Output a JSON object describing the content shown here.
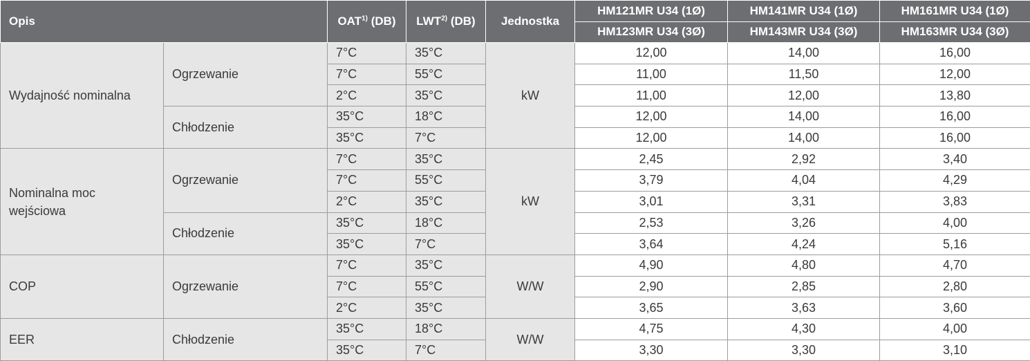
{
  "header": {
    "opis": "Opis",
    "oat": {
      "text": "OAT",
      "sup": "1)",
      "suffix": "(DB)"
    },
    "lwt": {
      "text": "LWT",
      "sup": "2)",
      "suffix": "(DB)"
    },
    "unit": "Jednostka",
    "models": [
      [
        "HM121MR U34 (1Ø)",
        "HM123MR U34 (3Ø)"
      ],
      [
        "HM141MR U34 (1Ø)",
        "HM143MR U34 (3Ø)"
      ],
      [
        "HM161MR U34 (1Ø)",
        "HM163MR U34 (3Ø)"
      ]
    ]
  },
  "groups": [
    {
      "label": "Wydajność nominalna",
      "unit": "kW",
      "modes": [
        {
          "label": "Ogrzewanie",
          "rows": [
            {
              "oat": "7°C",
              "lwt": "35°C",
              "values": [
                "12,00",
                "14,00",
                "16,00"
              ]
            },
            {
              "oat": "7°C",
              "lwt": "55°C",
              "values": [
                "11,00",
                "11,50",
                "12,00"
              ]
            },
            {
              "oat": "2°C",
              "lwt": "35°C",
              "values": [
                "11,00",
                "12,00",
                "13,80"
              ]
            }
          ]
        },
        {
          "label": "Chłodzenie",
          "rows": [
            {
              "oat": "35°C",
              "lwt": "18°C",
              "values": [
                "12,00",
                "14,00",
                "16,00"
              ]
            },
            {
              "oat": "35°C",
              "lwt": "7°C",
              "values": [
                "12,00",
                "14,00",
                "16,00"
              ]
            }
          ]
        }
      ]
    },
    {
      "label": "Nominalna moc\nwejściowa",
      "unit": "kW",
      "modes": [
        {
          "label": "Ogrzewanie",
          "rows": [
            {
              "oat": "7°C",
              "lwt": "35°C",
              "values": [
                "2,45",
                "2,92",
                "3,40"
              ]
            },
            {
              "oat": "7°C",
              "lwt": "55°C",
              "values": [
                "3,79",
                "4,04",
                "4,29"
              ]
            },
            {
              "oat": "2°C",
              "lwt": "35°C",
              "values": [
                "3,01",
                "3,31",
                "3,83"
              ]
            }
          ]
        },
        {
          "label": "Chłodzenie",
          "rows": [
            {
              "oat": "35°C",
              "lwt": "18°C",
              "values": [
                "2,53",
                "3,26",
                "4,00"
              ]
            },
            {
              "oat": "35°C",
              "lwt": "7°C",
              "values": [
                "3,64",
                "4,24",
                "5,16"
              ]
            }
          ]
        }
      ]
    },
    {
      "label": "COP",
      "unit": "W/W",
      "modes": [
        {
          "label": "Ogrzewanie",
          "rows": [
            {
              "oat": "7°C",
              "lwt": "35°C",
              "values": [
                "4,90",
                "4,80",
                "4,70"
              ]
            },
            {
              "oat": "7°C",
              "lwt": "55°C",
              "values": [
                "2,90",
                "2,85",
                "2,80"
              ]
            },
            {
              "oat": "2°C",
              "lwt": "35°C",
              "values": [
                "3,65",
                "3,63",
                "3,60"
              ]
            }
          ]
        }
      ]
    },
    {
      "label": "EER",
      "unit": "W/W",
      "modes": [
        {
          "label": "Chłodzenie",
          "rows": [
            {
              "oat": "35°C",
              "lwt": "18°C",
              "values": [
                "4,75",
                "4,30",
                "4,00"
              ]
            },
            {
              "oat": "35°C",
              "lwt": "7°C",
              "values": [
                "3,30",
                "3,30",
                "3,10"
              ]
            }
          ]
        }
      ]
    }
  ]
}
